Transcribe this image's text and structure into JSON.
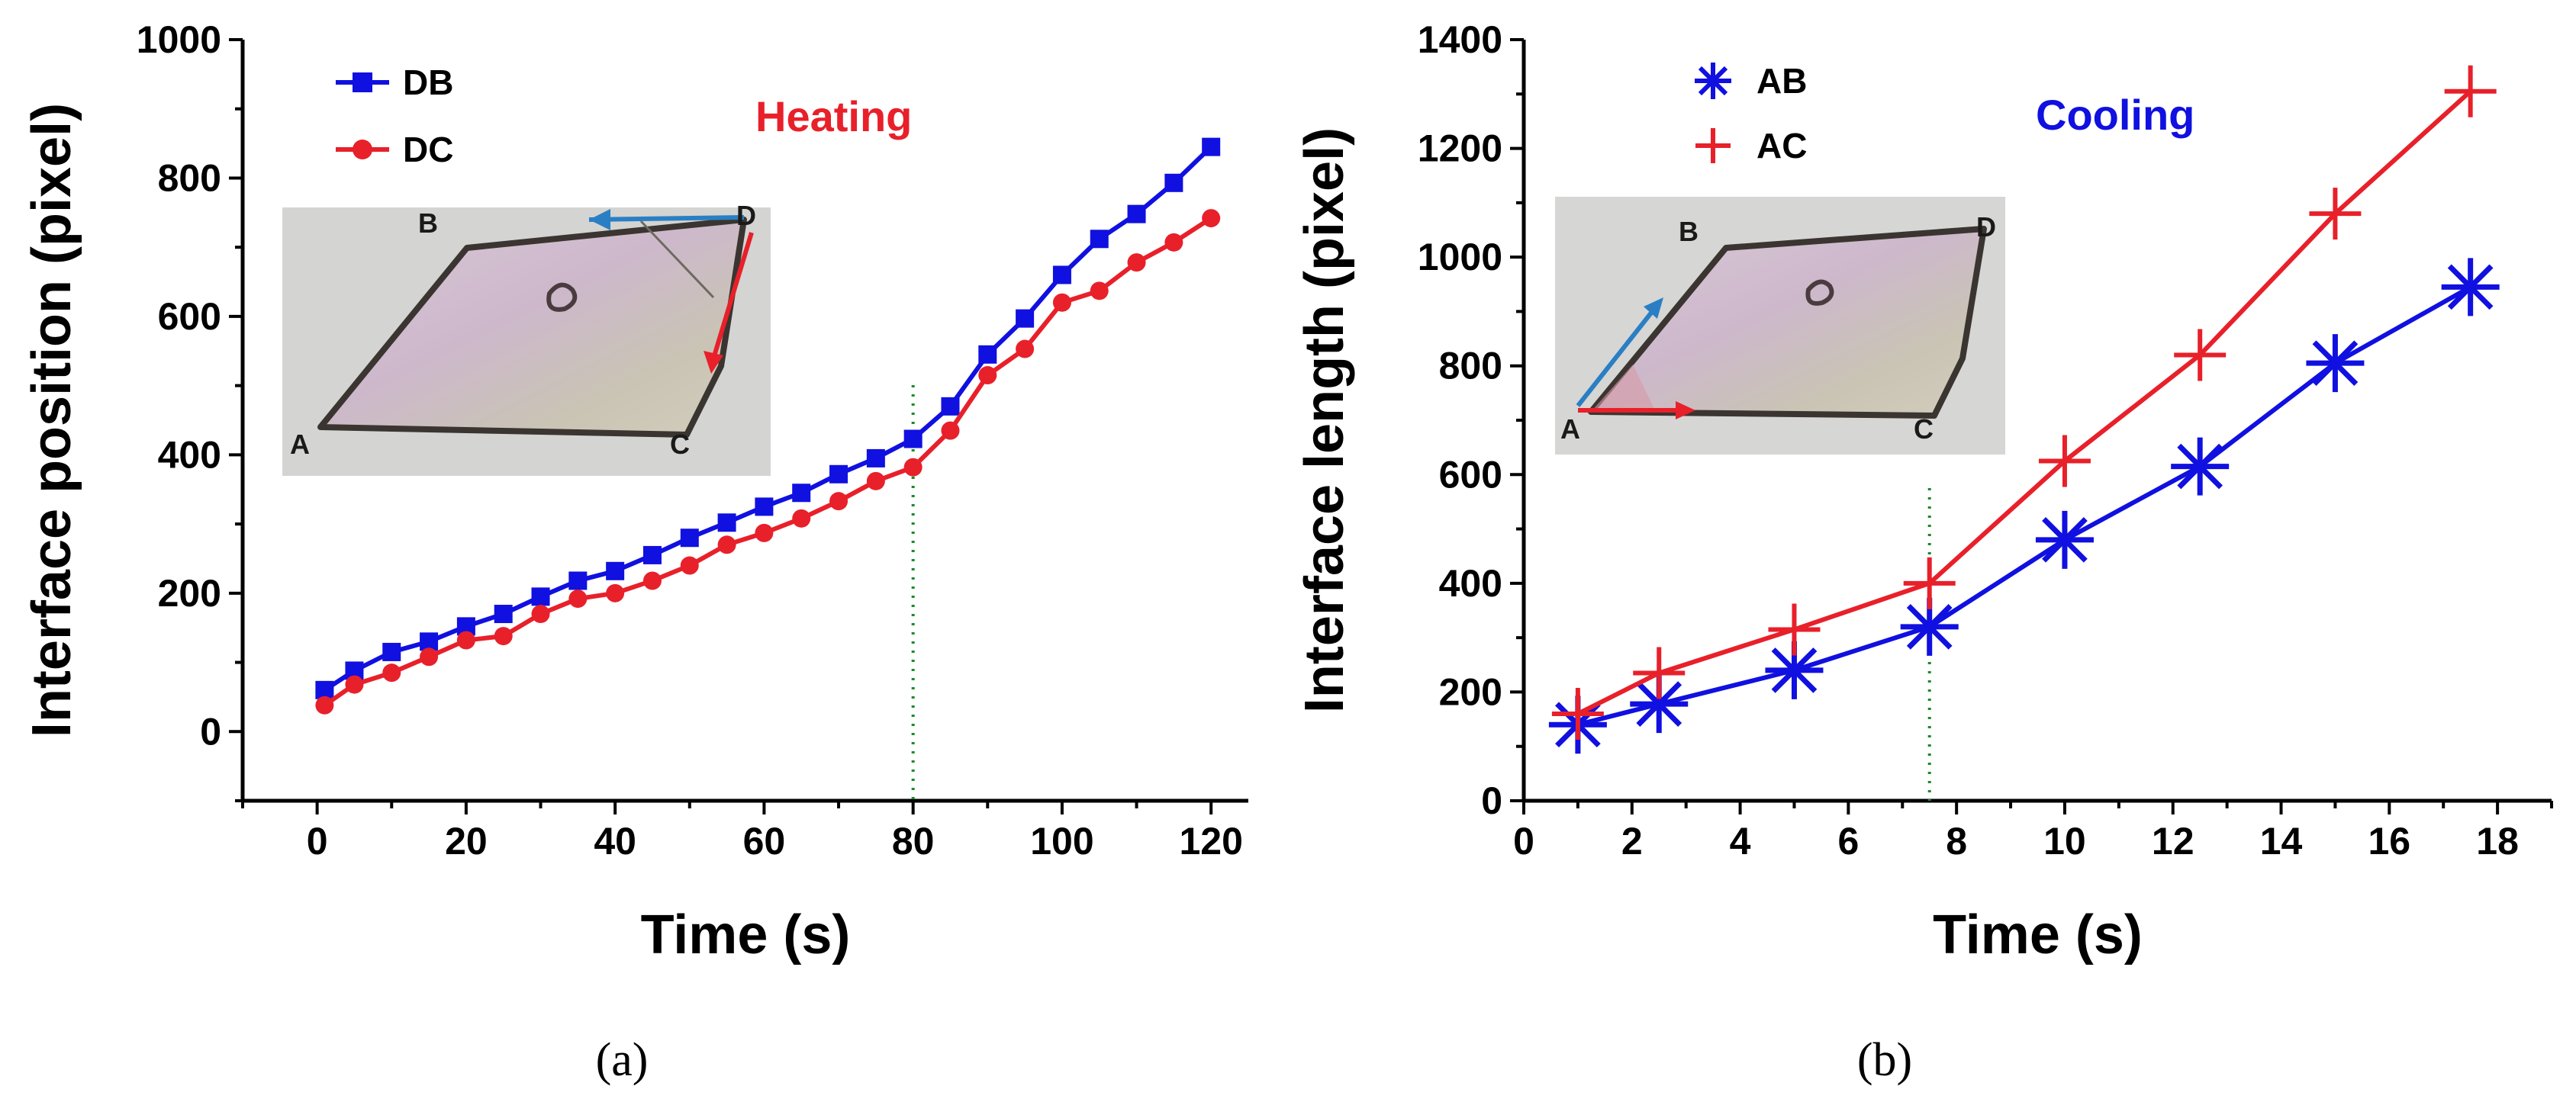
{
  "panels": [
    {
      "panel_label": "(a)",
      "annotation": {
        "text": "Heating",
        "color": "#e8202a"
      },
      "inset_labels": [
        "A",
        "B",
        "C",
        "D"
      ],
      "chart_data": {
        "type": "line",
        "title": "",
        "xlabel": "Time (s)",
        "ylabel": "Interface position (pixel)",
        "xlim": [
          -10,
          125
        ],
        "ylim": [
          -100,
          1000
        ],
        "xticks": [
          0,
          20,
          40,
          60,
          80,
          100,
          120
        ],
        "yticks": [
          0,
          200,
          400,
          600,
          800,
          1000
        ],
        "grid": false,
        "legend": "top-left",
        "vline_x": 80,
        "x": [
          1,
          5,
          10,
          15,
          20,
          25,
          30,
          35,
          40,
          45,
          50,
          55,
          60,
          65,
          70,
          75,
          80,
          85,
          90,
          95,
          100,
          105,
          110,
          115,
          120
        ],
        "series": [
          {
            "name": "DB",
            "color": "#1010e0",
            "marker": "square",
            "values": [
              60,
              88,
              115,
              130,
              152,
              170,
              195,
              218,
              232,
              255,
              280,
              302,
              325,
              345,
              372,
              395,
              423,
              470,
              545,
              597,
              660,
              712,
              748,
              793,
              845
            ]
          },
          {
            "name": "DC",
            "color": "#e8202a",
            "marker": "circle",
            "values": [
              38,
              68,
              85,
              108,
              132,
              138,
              170,
              192,
              200,
              218,
              240,
              270,
              287,
              308,
              333,
              362,
              382,
              435,
              515,
              553,
              620,
              637,
              678,
              707,
              742
            ]
          }
        ]
      }
    },
    {
      "panel_label": "(b)",
      "annotation": {
        "text": "Cooling",
        "color": "#1010e0"
      },
      "inset_labels": [
        "A",
        "B",
        "C",
        "D"
      ],
      "chart_data": {
        "type": "line",
        "title": "",
        "xlabel": "Time (s)",
        "ylabel": "Interface length (pixel)",
        "xlim": [
          0,
          19
        ],
        "ylim": [
          0,
          1400
        ],
        "xticks": [
          0,
          2,
          4,
          6,
          8,
          10,
          12,
          14,
          16,
          18
        ],
        "yticks": [
          0,
          200,
          400,
          600,
          800,
          1000,
          1200,
          1400
        ],
        "grid": false,
        "legend": "top-left",
        "vline_x": 7.5,
        "x": [
          1,
          2.5,
          5,
          7.5,
          10,
          12.5,
          15,
          17.5
        ],
        "series": [
          {
            "name": "AB",
            "color": "#1010e0",
            "marker": "asterisk",
            "values": [
              140,
              178,
              240,
              320,
              480,
              615,
              805,
              945
            ]
          },
          {
            "name": "AC",
            "color": "#e8202a",
            "marker": "plus",
            "values": [
              160,
              235,
              315,
              400,
              625,
              820,
              1080,
              1305
            ]
          }
        ]
      }
    }
  ]
}
